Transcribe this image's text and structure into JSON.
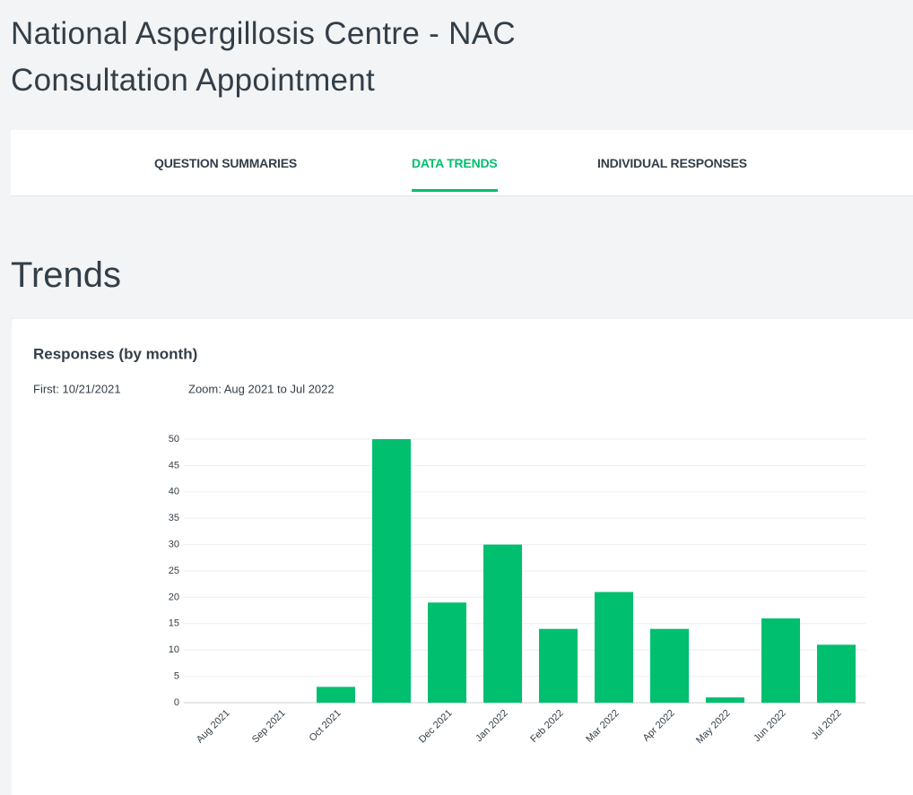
{
  "header": {
    "title_line1": "National Aspergillosis Centre - NAC",
    "title_line2": "Consultation Appointment"
  },
  "tabs": [
    "QUESTION SUMMARIES",
    "DATA TRENDS",
    "INDIVIDUAL RESPONSES"
  ],
  "active_tab": 1,
  "section_title": "Trends",
  "chart_data": {
    "type": "bar",
    "title": "Responses (by month)",
    "first": "First: 10/21/2021",
    "zoom": "Zoom: Aug 2021 to Jul 2022",
    "categories": [
      "Aug 2021",
      "Sep 2021",
      "Oct 2021",
      null,
      "Dec 2021",
      "Jan 2022",
      "Feb 2022",
      "Mar 2022",
      "Apr 2022",
      "May 2022",
      "Jun 2022",
      "Jul 2022"
    ],
    "values": [
      0,
      0,
      3,
      50,
      19,
      30,
      14,
      21,
      14,
      1,
      16,
      11
    ],
    "color": "#00bf6f",
    "ylim": [
      0,
      50
    ],
    "yticks": [
      0,
      5,
      10,
      15,
      20,
      25,
      30,
      35,
      40,
      45,
      50
    ],
    "grid": true
  }
}
